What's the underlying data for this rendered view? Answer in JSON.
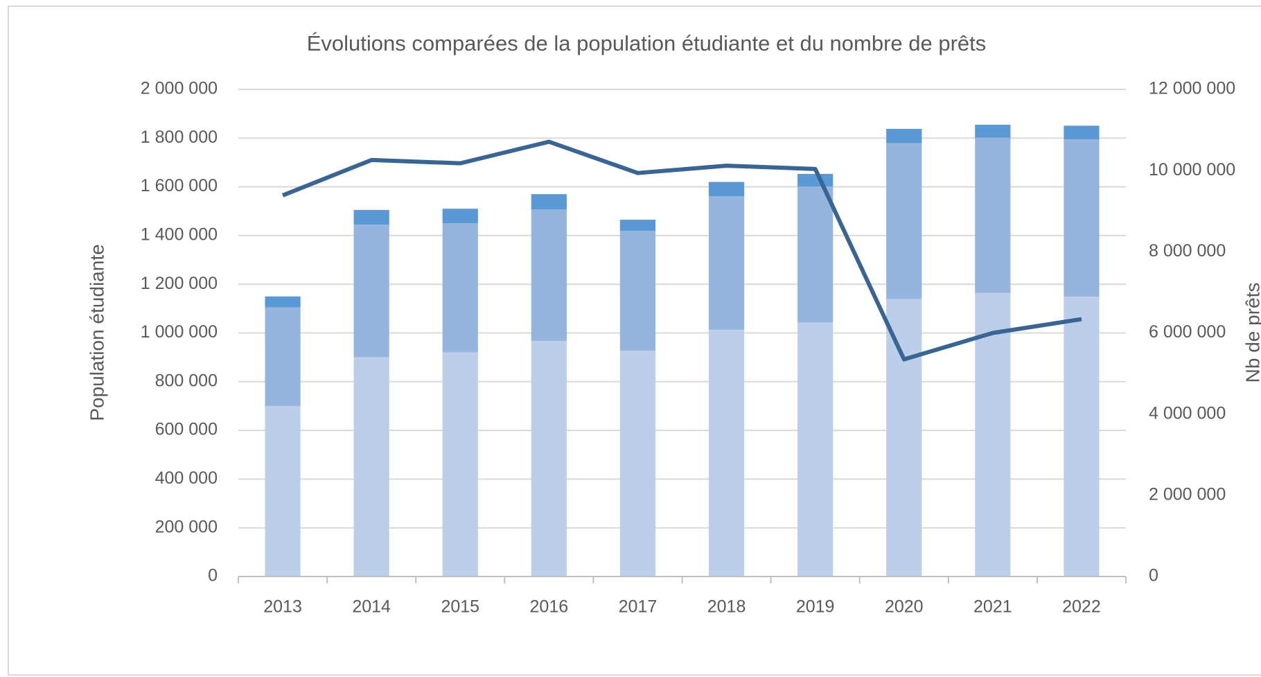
{
  "chart_data": {
    "type": "bar",
    "title": "Évolutions comparées de la population étudiante et du nombre de prêts",
    "ylabel": "Population étudiante",
    "y2label": "Nb de prêts",
    "stacked": true,
    "grid": true,
    "categories": [
      "2013",
      "2014",
      "2015",
      "2016",
      "2017",
      "2018",
      "2019",
      "2020",
      "2021",
      "2022"
    ],
    "series": [
      {
        "color": "#bccfea",
        "values": [
          700000,
          900000,
          920000,
          967000,
          927000,
          1013000,
          1043000,
          1139000,
          1165000,
          1149000
        ]
      },
      {
        "color": "#95b5de",
        "values": [
          405000,
          545000,
          530000,
          540000,
          492000,
          548000,
          558000,
          640000,
          637000,
          646000
        ]
      },
      {
        "color": "#5b99d6",
        "values": [
          45000,
          60000,
          60000,
          63000,
          46000,
          59000,
          52000,
          59000,
          53000,
          56000
        ]
      },
      {
        "type": "line",
        "axis": "y2",
        "color": "#3a6592",
        "values": [
          9390000,
          10260000,
          10180000,
          10710000,
          9940000,
          10120000,
          10040000,
          5350000,
          6000000,
          6340000
        ]
      }
    ],
    "ylim": [
      0,
      2000000
    ],
    "yticks": [
      0,
      {
        "value": 200000,
        "label": "200 000"
      },
      {
        "value": 400000,
        "label": "400 000"
      },
      {
        "value": 600000,
        "label": "600 000"
      },
      {
        "value": 800000,
        "label": "800 000"
      },
      {
        "value": 1000000,
        "label": "1 000 000"
      },
      {
        "value": 1200000,
        "label": "1 200 000"
      },
      {
        "value": 1400000,
        "label": "1 400 000"
      },
      {
        "value": 1600000,
        "label": "1 600 000"
      },
      {
        "value": 1800000,
        "label": "1 800 000"
      },
      {
        "value": 2000000,
        "label": "2 000 000"
      }
    ],
    "y2lim": [
      0,
      12000000
    ],
    "y2ticks": [
      0,
      {
        "value": 2000000,
        "label": "2 000 000"
      },
      {
        "value": 4000000,
        "label": "4 000 000"
      },
      {
        "value": 6000000,
        "label": "6 000 000"
      },
      {
        "value": 8000000,
        "label": "8 000 000"
      },
      {
        "value": 10000000,
        "label": "10 000 000"
      },
      {
        "value": 12000000,
        "label": "12 000 000"
      }
    ]
  }
}
